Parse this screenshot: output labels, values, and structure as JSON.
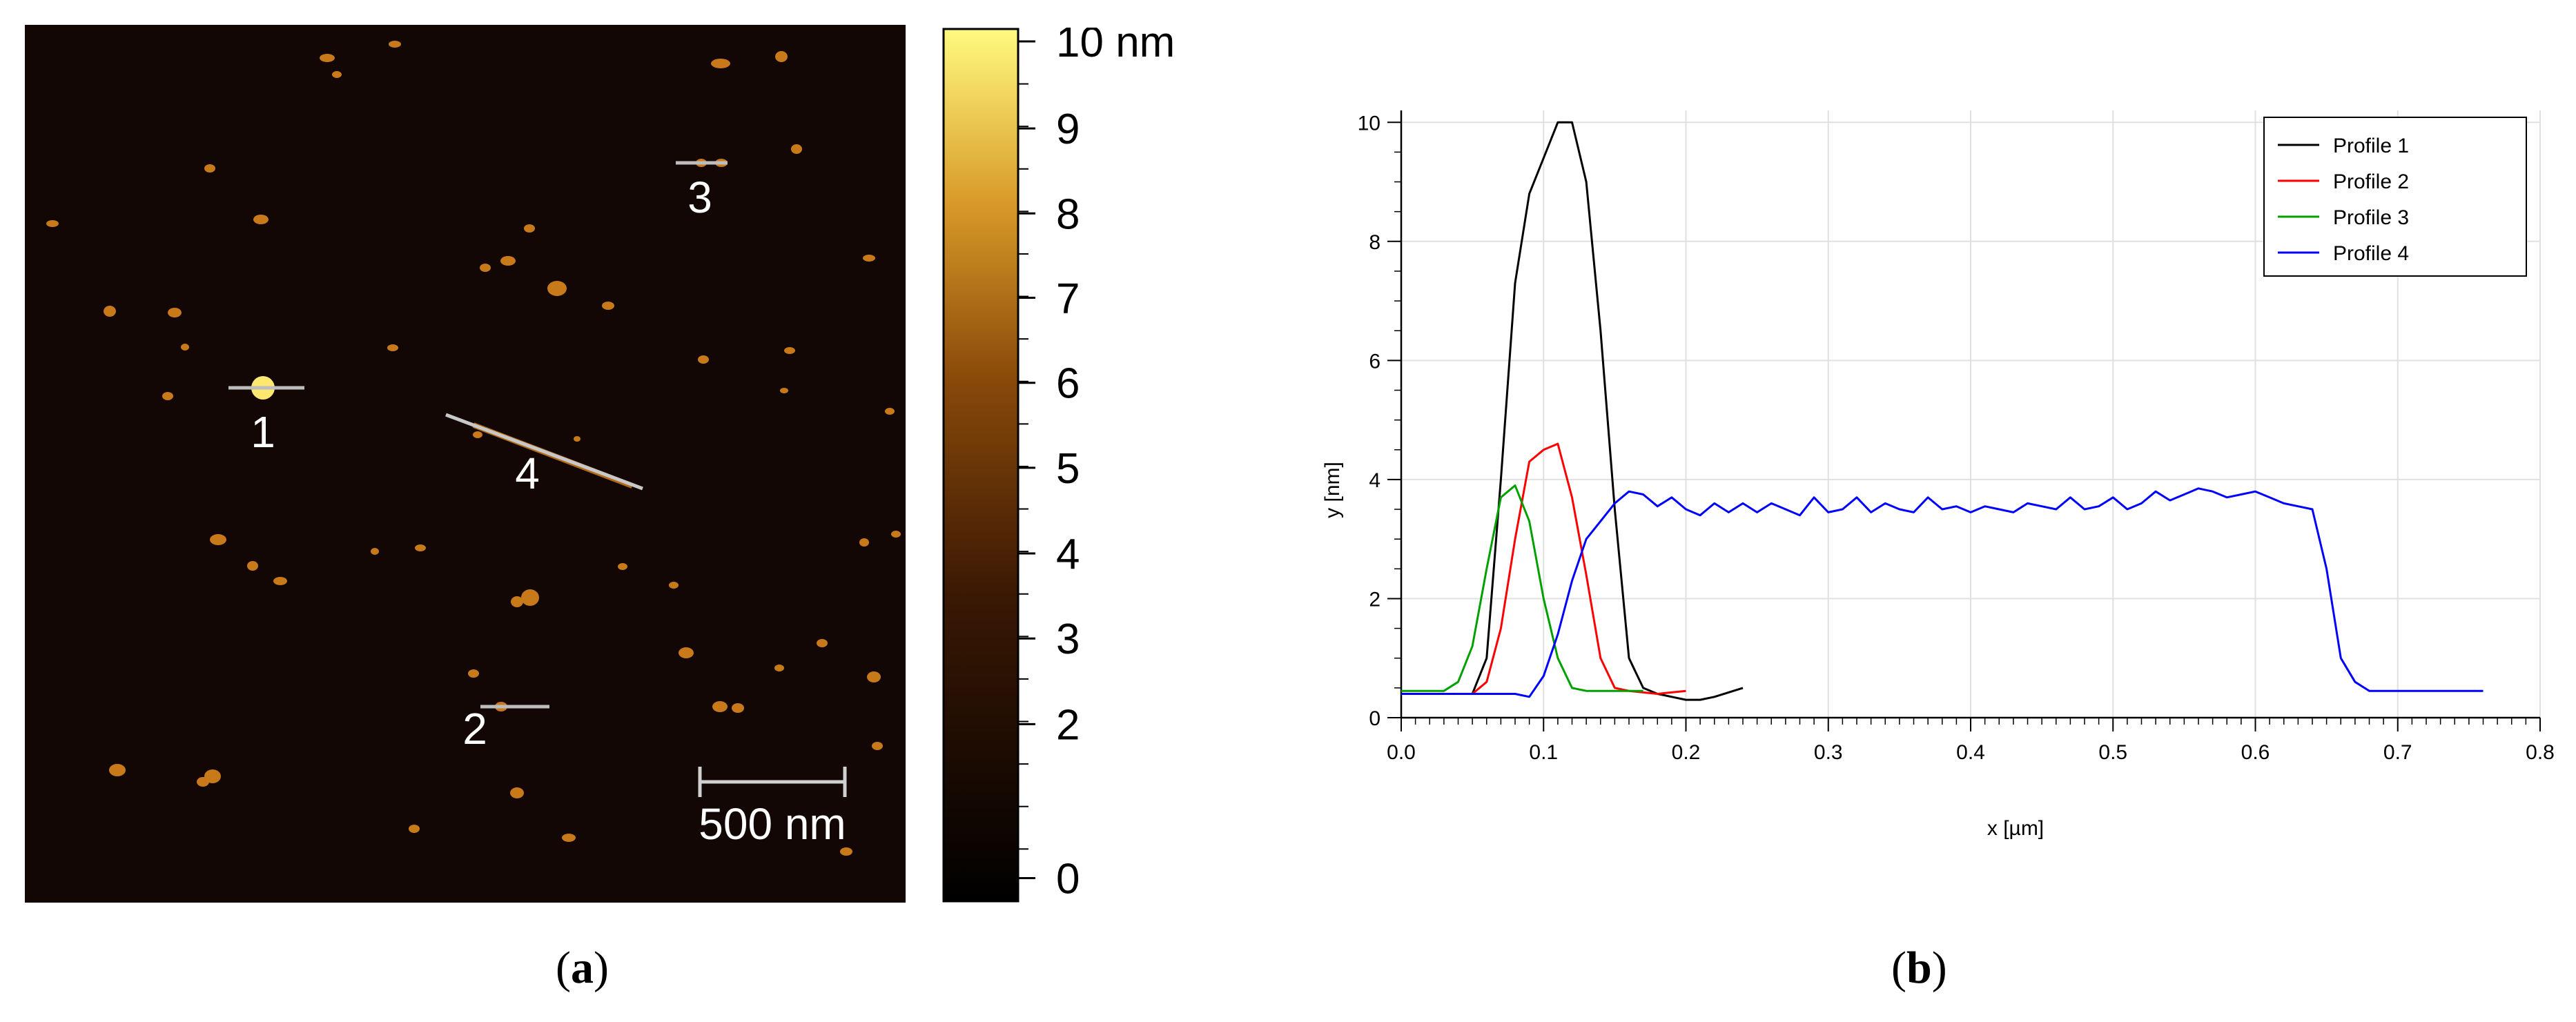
{
  "afm_image": {
    "particle_labels": [
      {
        "text": "1"
      },
      {
        "text": "2"
      },
      {
        "text": "3"
      },
      {
        "text": "4"
      }
    ],
    "scale_bar_label": "500 nm",
    "colors": {
      "background": "#120704",
      "particle": "#c87a1a",
      "bright": "#ffe870",
      "marker_line": "#bdbdbd",
      "label": "#ffffff"
    }
  },
  "colorbar": {
    "ticks": [
      "10 nm",
      "9",
      "8",
      "7",
      "6",
      "5",
      "4",
      "3",
      "2",
      "0"
    ],
    "colors": {
      "low": "#000000",
      "mid": "#8a4a0a",
      "high": "#fffa80"
    }
  },
  "panel_labels": {
    "a": {
      "open": "(",
      "letter": "a",
      "close": ")"
    },
    "b": {
      "open": "(",
      "letter": "b",
      "close": ")"
    }
  },
  "chart_data": {
    "type": "line",
    "title": "",
    "xlabel": "x [µm]",
    "ylabel": "y [nm]",
    "xlim": [
      0,
      0.8
    ],
    "ylim": [
      0,
      10
    ],
    "x_ticks": [
      "0.0",
      "0.1",
      "0.2",
      "0.3",
      "0.4",
      "0.5",
      "0.6",
      "0.7",
      "0.8"
    ],
    "y_ticks": [
      "0",
      "2",
      "4",
      "6",
      "8",
      "10"
    ],
    "grid": true,
    "legend_position": "top-right",
    "series": [
      {
        "name": "Profile 1",
        "color": "#000000",
        "x": [
          0.0,
          0.05,
          0.06,
          0.07,
          0.08,
          0.09,
          0.1,
          0.11,
          0.12,
          0.13,
          0.14,
          0.15,
          0.16,
          0.17,
          0.18,
          0.19,
          0.2,
          0.21,
          0.22,
          0.24
        ],
        "y": [
          0.4,
          0.4,
          1.0,
          4.0,
          7.3,
          8.8,
          9.4,
          10.0,
          10.0,
          9.0,
          6.5,
          3.5,
          1.0,
          0.5,
          0.4,
          0.35,
          0.3,
          0.3,
          0.35,
          0.5
        ]
      },
      {
        "name": "Profile 2",
        "color": "#ff0000",
        "x": [
          0.0,
          0.05,
          0.06,
          0.07,
          0.08,
          0.09,
          0.1,
          0.11,
          0.12,
          0.13,
          0.14,
          0.15,
          0.16,
          0.18,
          0.2
        ],
        "y": [
          0.4,
          0.4,
          0.6,
          1.5,
          3.0,
          4.3,
          4.5,
          4.6,
          3.7,
          2.4,
          1.0,
          0.5,
          0.45,
          0.4,
          0.45
        ]
      },
      {
        "name": "Profile 3",
        "color": "#00a000",
        "x": [
          0.0,
          0.03,
          0.04,
          0.05,
          0.06,
          0.07,
          0.08,
          0.09,
          0.1,
          0.11,
          0.12,
          0.13,
          0.15,
          0.17
        ],
        "y": [
          0.45,
          0.45,
          0.6,
          1.2,
          2.5,
          3.7,
          3.9,
          3.3,
          2.0,
          1.0,
          0.5,
          0.45,
          0.45,
          0.45
        ]
      },
      {
        "name": "Profile 4",
        "color": "#0000ff",
        "x": [
          0.0,
          0.04,
          0.06,
          0.08,
          0.09,
          0.1,
          0.11,
          0.12,
          0.13,
          0.14,
          0.15,
          0.16,
          0.17,
          0.18,
          0.19,
          0.2,
          0.21,
          0.22,
          0.23,
          0.24,
          0.25,
          0.26,
          0.27,
          0.28,
          0.29,
          0.3,
          0.31,
          0.32,
          0.33,
          0.34,
          0.35,
          0.36,
          0.37,
          0.38,
          0.39,
          0.4,
          0.41,
          0.42,
          0.43,
          0.44,
          0.45,
          0.46,
          0.47,
          0.48,
          0.49,
          0.5,
          0.51,
          0.52,
          0.53,
          0.54,
          0.55,
          0.56,
          0.57,
          0.58,
          0.59,
          0.6,
          0.61,
          0.62,
          0.63,
          0.64,
          0.65,
          0.66,
          0.67,
          0.68,
          0.7,
          0.72,
          0.74,
          0.76
        ],
        "y": [
          0.4,
          0.4,
          0.4,
          0.4,
          0.35,
          0.7,
          1.4,
          2.3,
          3.0,
          3.3,
          3.6,
          3.8,
          3.75,
          3.55,
          3.7,
          3.5,
          3.4,
          3.6,
          3.45,
          3.6,
          3.45,
          3.6,
          3.5,
          3.4,
          3.7,
          3.45,
          3.5,
          3.7,
          3.45,
          3.6,
          3.5,
          3.45,
          3.7,
          3.5,
          3.55,
          3.45,
          3.55,
          3.5,
          3.45,
          3.6,
          3.55,
          3.5,
          3.7,
          3.5,
          3.55,
          3.7,
          3.5,
          3.6,
          3.8,
          3.65,
          3.75,
          3.85,
          3.8,
          3.7,
          3.75,
          3.8,
          3.7,
          3.6,
          3.55,
          3.5,
          2.5,
          1.0,
          0.6,
          0.45,
          0.45,
          0.45,
          0.45,
          0.45
        ]
      }
    ]
  }
}
